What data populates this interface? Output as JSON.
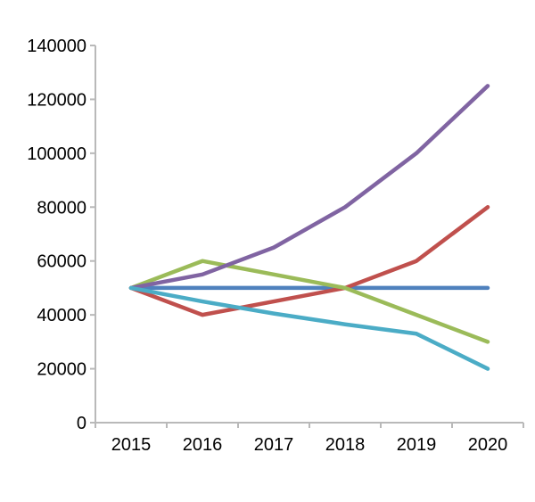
{
  "chart_data": {
    "type": "line",
    "title": "",
    "xlabel": "",
    "ylabel": "",
    "categories": [
      "2015",
      "2016",
      "2017",
      "2018",
      "2019",
      "2020"
    ],
    "series": [
      {
        "name": "blue",
        "color": "#4f81bd",
        "values": [
          50000,
          50000,
          50000,
          50000,
          50000,
          50000
        ]
      },
      {
        "name": "red",
        "color": "#c0504d",
        "values": [
          50000,
          40000,
          45000,
          50000,
          60000,
          80000
        ]
      },
      {
        "name": "green",
        "color": "#9bbb59",
        "values": [
          50000,
          60000,
          55000,
          50000,
          40000,
          30000
        ]
      },
      {
        "name": "purple",
        "color": "#8064a2",
        "values": [
          50000,
          55000,
          65000,
          80000,
          100000,
          125000
        ]
      },
      {
        "name": "cyan",
        "color": "#4bacc6",
        "values": [
          50000,
          45000,
          40500,
          36500,
          33000,
          20000
        ]
      }
    ],
    "ylim": [
      0,
      140000
    ],
    "ytick_step": 20000,
    "ytick_labels": [
      "0",
      "20000",
      "40000",
      "60000",
      "80000",
      "100000",
      "120000",
      "140000"
    ],
    "grid": false,
    "legend": "none",
    "axis_color": "#b9b9b9",
    "text_color": "#000000",
    "line_width": 4.5,
    "font_size": 20
  }
}
